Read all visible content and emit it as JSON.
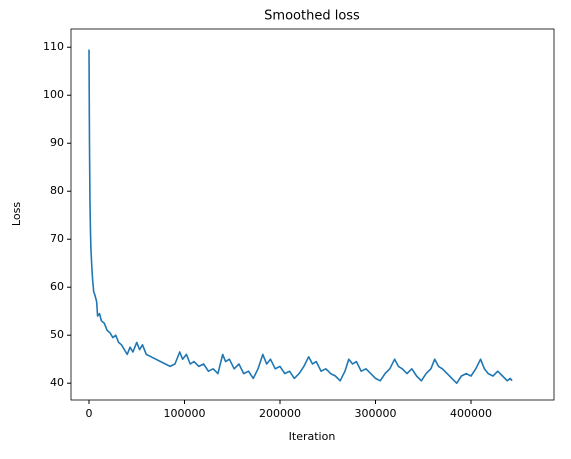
{
  "chart_data": {
    "type": "line",
    "title": "Smoothed loss",
    "xlabel": "Iteration",
    "ylabel": "Loss",
    "xlim": [
      -18850,
      486900
    ],
    "ylim": [
      36.5,
      113.8
    ],
    "xticks": [
      0,
      100000,
      200000,
      300000,
      400000
    ],
    "yticks": [
      40,
      50,
      60,
      70,
      80,
      90,
      100,
      110
    ],
    "x": [
      0,
      500,
      1000,
      1500,
      2000,
      3000,
      4000,
      5000,
      6000,
      8000,
      9000,
      11000,
      13000,
      16000,
      19000,
      22000,
      25000,
      28000,
      31000,
      34000,
      37000,
      40000,
      43000,
      46000,
      50000,
      53000,
      56000,
      60000,
      65000,
      70000,
      75000,
      80000,
      85000,
      90000,
      95000,
      98000,
      102000,
      106000,
      110000,
      115000,
      120000,
      125000,
      130000,
      135000,
      140000,
      143000,
      147000,
      152000,
      157000,
      162000,
      167000,
      172000,
      177000,
      182000,
      186000,
      190000,
      195000,
      200000,
      205000,
      210000,
      215000,
      220000,
      225000,
      230000,
      234000,
      238000,
      243000,
      248000,
      253000,
      258000,
      263000,
      268000,
      272000,
      276000,
      280000,
      285000,
      290000,
      295000,
      300000,
      305000,
      310000,
      315000,
      320000,
      324000,
      328000,
      333000,
      338000,
      343000,
      348000,
      353000,
      358000,
      362000,
      366000,
      370000,
      375000,
      380000,
      385000,
      390000,
      395000,
      400000,
      405000,
      410000,
      414000,
      418000,
      423000,
      428000,
      433000,
      438000,
      441000,
      443000
    ],
    "series": [
      {
        "color": "#1f77b4",
        "values": [
          109.5,
          90,
          78,
          72,
          68,
          64,
          61,
          59,
          58.5,
          57,
          54,
          54.5,
          53,
          52.5,
          51,
          50.5,
          49.5,
          50,
          48.5,
          48,
          47,
          46,
          47.5,
          46.5,
          48.5,
          47,
          48,
          46,
          45.5,
          45,
          44.5,
          44,
          43.5,
          44,
          46.5,
          45,
          46,
          44,
          44.5,
          43.5,
          44,
          42.5,
          43,
          42,
          46,
          44.5,
          45,
          43,
          44,
          42,
          42.5,
          41,
          43,
          46,
          44,
          45,
          43,
          43.5,
          42,
          42.5,
          41,
          42,
          43.5,
          45.5,
          44,
          44.5,
          42.5,
          43,
          42,
          41.5,
          40.5,
          42.5,
          45,
          44,
          44.5,
          42.5,
          43,
          42,
          41,
          40.5,
          42,
          43,
          45,
          43.5,
          43,
          42,
          43,
          41.5,
          40.5,
          42,
          43,
          45,
          43.5,
          43,
          42,
          41,
          40,
          41.5,
          42,
          41.5,
          43,
          45,
          43,
          42,
          41.5,
          42.5,
          41.5,
          40.5,
          41,
          40.5
        ]
      }
    ]
  }
}
